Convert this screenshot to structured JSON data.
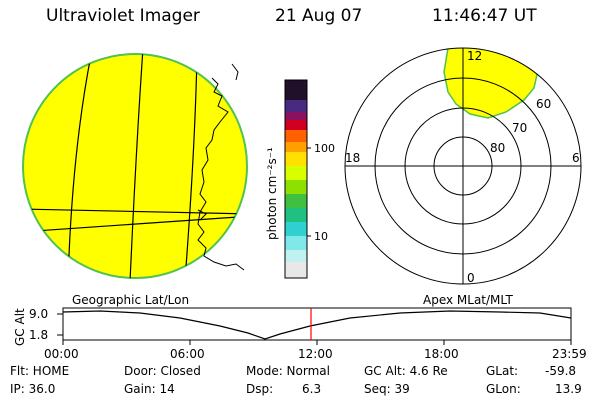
{
  "header": {
    "title": "Ultraviolet Imager",
    "date": "21 Aug 07",
    "time": "11:46:47 UT"
  },
  "colorbar": {
    "unit_label": "photon cm⁻²s⁻¹",
    "ticks": [
      "100",
      "10"
    ]
  },
  "polar_plot": {
    "mlt_labels": {
      "top": "12",
      "left": "18",
      "right": "6",
      "bottom": "0"
    },
    "lat_labels": [
      "60",
      "70",
      "80"
    ]
  },
  "timeline": {
    "left_label": "Geographic Lat/Lon",
    "right_label": "Apex MLat/MLT",
    "y_axis_title": "GC Alt",
    "y_ticks": [
      "9.0",
      "1.8"
    ],
    "x_ticks": [
      "00:00",
      "06:00",
      "12:00",
      "18:00",
      "23:59"
    ]
  },
  "status": {
    "flt": "Flt: HOME",
    "ip": "IP: 36.0",
    "door": "Door: Closed",
    "gain": "Gain: 14",
    "mode": "Mode: Normal",
    "dsp_label": "Dsp:",
    "dsp_value": "6.3",
    "gc_alt": "GC Alt: 4.6 Re",
    "seq": "Seq: 39",
    "glat_label": "GLat:",
    "glat_value": "-59.8",
    "glon_label": "GLon:",
    "glon_value": "13.9"
  },
  "colors": {
    "fill": "#ffff00",
    "rim": "#4fc24f",
    "marker": "#ff0000"
  }
}
